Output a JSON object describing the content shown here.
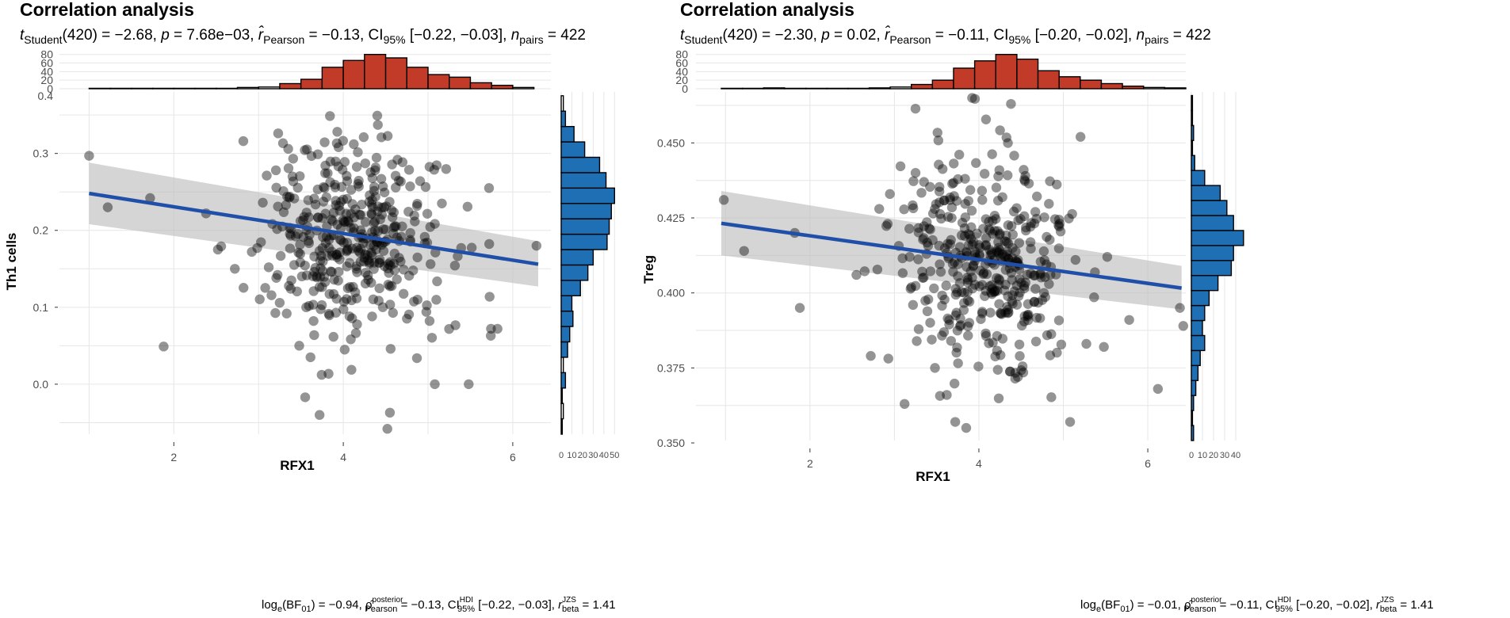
{
  "chart_data": [
    {
      "type": "scatter",
      "title": "Correlation analysis",
      "subtitle": "t_Student(420) = −2.68, p = 7.68e−03, r̂_Pearson = −0.13, CI_95% [−0.22, −0.03], n_pairs = 422",
      "subtitle_parts": {
        "t_sym": "t",
        "t_sub": "Student",
        "t_stat": "(420) = −2.68, ",
        "p_sym": "p",
        "p_val": " = 7.68e−03, ",
        "r_sym": "r̂",
        "r_sub": "Pearson",
        "r_val": " = −0.13, CI",
        "ci_sub": "95%",
        "ci_val": " [−0.22, −0.03], ",
        "n_sym": "n",
        "n_sub": "pairs",
        "n_val": " = 422"
      },
      "caption_parts": {
        "log": "log",
        "log_sub": "e",
        "bf": "(BF",
        "bf_sub": "01",
        "bf_val": ") = −0.94, ",
        "rho": "ρ̂",
        "rho_sup": "posterior",
        "rho_sub": "Pearson",
        "rho_val": " = −0.13, CI",
        "ci_sup": "HDI",
        "ci_sub": "95%",
        "ci_val": " [−0.22, −0.03], ",
        "r": "r",
        "r_sup": "JZS",
        "r_sub": "beta",
        "r_val": " = 1.41"
      },
      "xlabel": "RFX1",
      "ylabel": "Th1 cells",
      "xlim": [
        0.65,
        6.45
      ],
      "ylim": [
        -0.065,
        0.38
      ],
      "xticks": [
        2,
        4,
        6
      ],
      "yticks": [
        0.0,
        0.1,
        0.2,
        0.3
      ],
      "ytick_labels": [
        "0.0",
        "0.1",
        "0.2",
        "0.3"
      ],
      "regression": {
        "x": [
          1.0,
          6.3
        ],
        "y": [
          0.248,
          0.156
        ],
        "ci_low": [
          0.208,
          0.127
        ],
        "ci_high": [
          0.288,
          0.186
        ]
      },
      "top_hist": {
        "bins": [
          1.0,
          1.25,
          1.5,
          1.75,
          2.0,
          2.25,
          2.5,
          2.75,
          3.0,
          3.25,
          3.5,
          3.75,
          4.0,
          4.25,
          4.5,
          4.75,
          5.0,
          5.25,
          5.5,
          5.75,
          6.0,
          6.25
        ],
        "counts": [
          1,
          1,
          1,
          1,
          1,
          1,
          1,
          3,
          4,
          12,
          22,
          50,
          66,
          80,
          72,
          50,
          33,
          27,
          14,
          8,
          3,
          2
        ],
        "filled": [
          false,
          false,
          false,
          false,
          false,
          false,
          false,
          false,
          false,
          true,
          true,
          true,
          true,
          true,
          true,
          true,
          true,
          true,
          true,
          true,
          false,
          false
        ],
        "ylim": [
          0,
          85
        ],
        "yticks": [
          0,
          20,
          40,
          60,
          80
        ],
        "extra_tick": "0.4"
      },
      "side_hist": {
        "bins": [
          -0.065,
          -0.045,
          -0.025,
          -0.005,
          0.015,
          0.035,
          0.055,
          0.075,
          0.095,
          0.115,
          0.135,
          0.155,
          0.175,
          0.195,
          0.215,
          0.235,
          0.255,
          0.275,
          0.295,
          0.315,
          0.335,
          0.355,
          0.375
        ],
        "counts": [
          1,
          2,
          1,
          4,
          2,
          6,
          8,
          11,
          10,
          18,
          25,
          30,
          43,
          45,
          47,
          50,
          42,
          36,
          22,
          12,
          4,
          2
        ],
        "filled": [
          false,
          false,
          false,
          true,
          false,
          true,
          true,
          true,
          true,
          true,
          true,
          true,
          true,
          true,
          true,
          true,
          true,
          true,
          true,
          true,
          true,
          false
        ],
        "xlim": [
          0,
          52
        ],
        "xticks": [
          0,
          10,
          20,
          30,
          40,
          50
        ]
      },
      "points": {
        "n": 422,
        "seed": 7,
        "x_mean": 4.12,
        "x_sd": 0.52,
        "y_mean": 0.19,
        "y_sd": 0.065,
        "slope": -0.0174,
        "extra_x": [
          1.0,
          1.22,
          1.72,
          1.88,
          2.38,
          2.52,
          2.72,
          2.82,
          2.92,
          3.05,
          3.12,
          3.35,
          3.38,
          3.42,
          3.48,
          3.55,
          3.65,
          3.72,
          3.78,
          4.45,
          4.52,
          4.55,
          4.98,
          5.08,
          5.48,
          5.72,
          5.82,
          6.28
        ],
        "extra_y": [
          0.297,
          0.23,
          0.242,
          0.049,
          0.222,
          0.175,
          0.15,
          0.316,
          0.172,
          0.236,
          0.152,
          0.306,
          0.124,
          0.155,
          0.05,
          -0.017,
          0.121,
          -0.04,
          0.255,
          0.321,
          -0.058,
          -0.037,
          0.094,
          0.0,
          0.0,
          0.255,
          0.072,
          0.18
        ]
      }
    },
    {
      "type": "scatter",
      "title": "Correlation analysis",
      "subtitle": "t_Student(420) = −2.30, p = 0.02, r̂_Pearson = −0.11, CI_95% [−0.20, −0.02], n_pairs = 422",
      "subtitle_parts": {
        "t_sym": "t",
        "t_sub": "Student",
        "t_stat": "(420) = −2.30, ",
        "p_sym": "p",
        "p_val": " = 0.02, ",
        "r_sym": "r̂",
        "r_sub": "Pearson",
        "r_val": " = −0.11, CI",
        "ci_sub": "95%",
        "ci_val": " [−0.20, −0.02], ",
        "n_sym": "n",
        "n_sub": "pairs",
        "n_val": " = 422"
      },
      "caption_parts": {
        "log": "log",
        "log_sub": "e",
        "bf": "(BF",
        "bf_sub": "01",
        "bf_val": ") = −0.01, ",
        "rho": "ρ̂",
        "rho_sup": "posterior",
        "rho_sub": "Pearson",
        "rho_val": " = −0.11, CI",
        "ci_sup": "HDI",
        "ci_sub": "95%",
        "ci_val": " [−0.20, −0.02], ",
        "r": "r",
        "r_sup": "JZS",
        "r_sub": "beta",
        "r_val": " = 1.41"
      },
      "xlabel": "RFX1",
      "ylabel": "Treg",
      "xlim": [
        0.65,
        6.45
      ],
      "ylim": [
        0.3508,
        0.467
      ],
      "xticks": [
        2,
        4,
        6
      ],
      "yticks": [
        0.35,
        0.375,
        0.4,
        0.425,
        0.45
      ],
      "ytick_labels": [
        "0.350",
        "0.375",
        "0.400",
        "0.425",
        "0.450"
      ],
      "regression": {
        "x": [
          0.95,
          6.4
        ],
        "y": [
          0.4232,
          0.4016
        ],
        "ci_low": [
          0.4125,
          0.3945
        ],
        "ci_high": [
          0.434,
          0.409
        ]
      },
      "top_hist": {
        "bins": [
          0.95,
          1.2,
          1.45,
          1.7,
          1.95,
          2.2,
          2.45,
          2.7,
          2.95,
          3.2,
          3.45,
          3.7,
          3.95,
          4.2,
          4.45,
          4.7,
          4.95,
          5.2,
          5.45,
          5.7,
          5.95,
          6.2,
          6.45
        ],
        "counts": [
          1,
          1,
          2,
          1,
          1,
          1,
          1,
          2,
          4,
          10,
          20,
          48,
          65,
          80,
          69,
          42,
          28,
          20,
          12,
          6,
          3,
          2
        ],
        "filled": [
          false,
          false,
          false,
          false,
          false,
          false,
          false,
          false,
          false,
          true,
          true,
          true,
          true,
          true,
          true,
          true,
          true,
          true,
          true,
          true,
          false,
          false
        ],
        "ylim": [
          0,
          85
        ],
        "yticks": [
          0,
          20,
          40,
          60,
          80
        ],
        "extra_tick": ""
      },
      "side_hist": {
        "bins": [
          0.3508,
          0.3558,
          0.3608,
          0.3658,
          0.3708,
          0.3758,
          0.3808,
          0.3858,
          0.3908,
          0.3958,
          0.4008,
          0.4058,
          0.4108,
          0.4158,
          0.4208,
          0.4258,
          0.4308,
          0.4358,
          0.4408,
          0.4458,
          0.4508,
          0.4558,
          0.4608,
          0.4658
        ],
        "counts": [
          2,
          1,
          2,
          4,
          6,
          8,
          12,
          10,
          12,
          16,
          24,
          36,
          38,
          47,
          38,
          32,
          26,
          12,
          3,
          1,
          2,
          1,
          1
        ],
        "filled": [
          true,
          false,
          true,
          true,
          true,
          true,
          true,
          true,
          true,
          true,
          true,
          true,
          true,
          true,
          true,
          true,
          true,
          true,
          true,
          false,
          true,
          false,
          false
        ],
        "xlim": [
          0,
          45
        ],
        "xticks": [
          0,
          10,
          20,
          30,
          40
        ]
      },
      "points": {
        "n": 422,
        "seed": 13,
        "x_mean": 4.1,
        "x_sd": 0.5,
        "y_mean": 0.41,
        "y_sd": 0.0175,
        "slope": -0.004,
        "extra_x": [
          0.98,
          1.22,
          1.82,
          1.88,
          2.55,
          2.72,
          2.82,
          2.92,
          3.12,
          3.18,
          3.22,
          3.25,
          3.35,
          3.38,
          3.48,
          3.62,
          3.72,
          3.85,
          3.92,
          4.38,
          4.55,
          5.08,
          5.48,
          5.52,
          5.78,
          6.12,
          6.38,
          6.42
        ],
        "extra_y": [
          0.431,
          0.414,
          0.42,
          0.395,
          0.406,
          0.379,
          0.428,
          0.423,
          0.363,
          0.412,
          0.396,
          0.44,
          0.437,
          0.413,
          0.375,
          0.366,
          0.357,
          0.355,
          0.465,
          0.463,
          0.439,
          0.357,
          0.382,
          0.412,
          0.391,
          0.368,
          0.395,
          0.389
        ]
      }
    }
  ]
}
